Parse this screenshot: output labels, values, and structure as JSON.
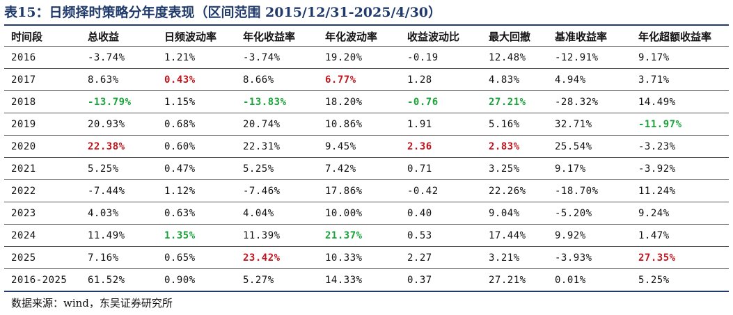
{
  "title": "表15：日频择时策略分年度表现（区间范围 2015/12/31-2025/4/30）",
  "table": {
    "headers": [
      "时间段",
      "总收益",
      "日频波动率",
      "年化收益率",
      "年化波动率",
      "收益波动比",
      "最大回撤",
      "基准收益率",
      "年化超额收益率"
    ],
    "rows": [
      [
        {
          "v": "2016",
          "c": ""
        },
        {
          "v": "-3.74%",
          "c": ""
        },
        {
          "v": "1.21%",
          "c": ""
        },
        {
          "v": "-3.74%",
          "c": ""
        },
        {
          "v": "19.20%",
          "c": ""
        },
        {
          "v": "-0.19",
          "c": ""
        },
        {
          "v": "12.48%",
          "c": ""
        },
        {
          "v": "-12.91%",
          "c": ""
        },
        {
          "v": "9.17%",
          "c": ""
        }
      ],
      [
        {
          "v": "2017",
          "c": ""
        },
        {
          "v": "8.63%",
          "c": ""
        },
        {
          "v": "0.43%",
          "c": "red"
        },
        {
          "v": "8.66%",
          "c": ""
        },
        {
          "v": "6.77%",
          "c": "red"
        },
        {
          "v": "1.28",
          "c": ""
        },
        {
          "v": "4.83%",
          "c": ""
        },
        {
          "v": "4.94%",
          "c": ""
        },
        {
          "v": "3.71%",
          "c": ""
        }
      ],
      [
        {
          "v": "2018",
          "c": ""
        },
        {
          "v": "-13.79%",
          "c": "green"
        },
        {
          "v": "1.15%",
          "c": ""
        },
        {
          "v": "-13.83%",
          "c": "green"
        },
        {
          "v": "18.20%",
          "c": ""
        },
        {
          "v": "-0.76",
          "c": "green"
        },
        {
          "v": "27.21%",
          "c": "green"
        },
        {
          "v": "-28.32%",
          "c": ""
        },
        {
          "v": "14.49%",
          "c": ""
        }
      ],
      [
        {
          "v": "2019",
          "c": ""
        },
        {
          "v": "20.93%",
          "c": ""
        },
        {
          "v": "0.68%",
          "c": ""
        },
        {
          "v": "20.74%",
          "c": ""
        },
        {
          "v": "10.86%",
          "c": ""
        },
        {
          "v": "1.91",
          "c": ""
        },
        {
          "v": "5.16%",
          "c": ""
        },
        {
          "v": "32.71%",
          "c": ""
        },
        {
          "v": "-11.97%",
          "c": "green"
        }
      ],
      [
        {
          "v": "2020",
          "c": ""
        },
        {
          "v": "22.38%",
          "c": "red"
        },
        {
          "v": "0.60%",
          "c": ""
        },
        {
          "v": "22.31%",
          "c": ""
        },
        {
          "v": "9.45%",
          "c": ""
        },
        {
          "v": "2.36",
          "c": "red"
        },
        {
          "v": "2.83%",
          "c": "red"
        },
        {
          "v": "25.54%",
          "c": ""
        },
        {
          "v": "-3.23%",
          "c": ""
        }
      ],
      [
        {
          "v": "2021",
          "c": ""
        },
        {
          "v": "5.25%",
          "c": ""
        },
        {
          "v": "0.47%",
          "c": ""
        },
        {
          "v": "5.25%",
          "c": ""
        },
        {
          "v": "7.42%",
          "c": ""
        },
        {
          "v": "0.71",
          "c": ""
        },
        {
          "v": "3.25%",
          "c": ""
        },
        {
          "v": "9.17%",
          "c": ""
        },
        {
          "v": "-3.92%",
          "c": ""
        }
      ],
      [
        {
          "v": "2022",
          "c": ""
        },
        {
          "v": "-7.44%",
          "c": ""
        },
        {
          "v": "1.12%",
          "c": ""
        },
        {
          "v": "-7.46%",
          "c": ""
        },
        {
          "v": "17.86%",
          "c": ""
        },
        {
          "v": "-0.42",
          "c": ""
        },
        {
          "v": "22.26%",
          "c": ""
        },
        {
          "v": "-18.70%",
          "c": ""
        },
        {
          "v": "11.24%",
          "c": ""
        }
      ],
      [
        {
          "v": "2023",
          "c": ""
        },
        {
          "v": "4.03%",
          "c": ""
        },
        {
          "v": "0.63%",
          "c": ""
        },
        {
          "v": "4.04%",
          "c": ""
        },
        {
          "v": "10.00%",
          "c": ""
        },
        {
          "v": "0.40",
          "c": ""
        },
        {
          "v": "9.04%",
          "c": ""
        },
        {
          "v": "-5.20%",
          "c": ""
        },
        {
          "v": "9.24%",
          "c": ""
        }
      ],
      [
        {
          "v": "2024",
          "c": ""
        },
        {
          "v": "11.49%",
          "c": ""
        },
        {
          "v": "1.35%",
          "c": "green"
        },
        {
          "v": "11.39%",
          "c": ""
        },
        {
          "v": "21.37%",
          "c": "green"
        },
        {
          "v": "0.53",
          "c": ""
        },
        {
          "v": "17.44%",
          "c": ""
        },
        {
          "v": "9.92%",
          "c": ""
        },
        {
          "v": "1.47%",
          "c": ""
        }
      ],
      [
        {
          "v": "2025",
          "c": ""
        },
        {
          "v": "7.16%",
          "c": ""
        },
        {
          "v": "0.65%",
          "c": ""
        },
        {
          "v": "23.42%",
          "c": "red"
        },
        {
          "v": "10.33%",
          "c": ""
        },
        {
          "v": "2.27",
          "c": ""
        },
        {
          "v": "3.21%",
          "c": ""
        },
        {
          "v": "-3.93%",
          "c": ""
        },
        {
          "v": "27.35%",
          "c": "red"
        }
      ],
      [
        {
          "v": "2016-2025",
          "c": ""
        },
        {
          "v": "61.52%",
          "c": ""
        },
        {
          "v": "0.90%",
          "c": ""
        },
        {
          "v": "5.27%",
          "c": ""
        },
        {
          "v": "14.33%",
          "c": ""
        },
        {
          "v": "0.37",
          "c": ""
        },
        {
          "v": "27.21%",
          "c": ""
        },
        {
          "v": "0.01%",
          "c": ""
        },
        {
          "v": "5.25%",
          "c": ""
        }
      ]
    ]
  },
  "source": "数据来源：wind，东吴证券研究所",
  "colors": {
    "title": "#1f3a6b",
    "highlight_red": "#c0141c",
    "highlight_green": "#19a43a"
  }
}
